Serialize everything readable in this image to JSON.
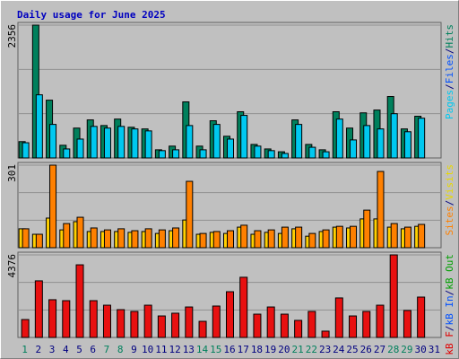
{
  "chart_data": [
    {
      "type": "bar",
      "title": "Daily usage for June 2025",
      "ylim": [
        0,
        2356
      ],
      "yticks": [
        2356
      ],
      "legend_separator": "/",
      "legend": [
        {
          "label": "Pages",
          "color": "#00c8f0"
        },
        {
          "label": "Files",
          "color": "#0050ff"
        },
        {
          "label": "Hits",
          "color": "#00805c"
        }
      ],
      "series": [
        {
          "color": "#00805c",
          "values": [
            290,
            2356,
            1025,
            225,
            530,
            675,
            575,
            690,
            545,
            515,
            145,
            210,
            995,
            210,
            660,
            385,
            820,
            240,
            160,
            110,
            675,
            240,
            145,
            820,
            530,
            800,
            850,
            1090,
            515,
            740,
            null
          ]
        },
        {
          "color": "#00c8f0",
          "values": [
            270,
            1120,
            595,
            160,
            335,
            560,
            530,
            560,
            515,
            480,
            130,
            145,
            575,
            145,
            595,
            335,
            755,
            210,
            130,
            80,
            595,
            190,
            110,
            690,
            320,
            575,
            515,
            785,
            465,
            705,
            null
          ]
        }
      ]
    },
    {
      "type": "bar",
      "ylim": [
        0,
        301
      ],
      "yticks": [
        301
      ],
      "legend_separator": "/",
      "legend": [
        {
          "label": "Sites",
          "color": "#ff8000"
        },
        {
          "label": "Visits",
          "color": "#e8d800"
        }
      ],
      "series": [
        {
          "color": "#ffd000",
          "values": [
            69,
            49,
            108,
            65,
            95,
            59,
            59,
            59,
            56,
            59,
            52,
            62,
            101,
            49,
            56,
            52,
            75,
            49,
            56,
            52,
            69,
            42,
            59,
            75,
            72,
            105,
            105,
            75,
            69,
            78,
            null
          ]
        },
        {
          "color": "#ff8000",
          "values": [
            69,
            49,
            301,
            88,
            111,
            72,
            65,
            69,
            62,
            69,
            65,
            72,
            242,
            52,
            59,
            62,
            82,
            62,
            65,
            75,
            75,
            52,
            65,
            78,
            78,
            137,
            278,
            88,
            75,
            85,
            null
          ]
        }
      ]
    },
    {
      "type": "bar",
      "ylim": [
        0,
        4376
      ],
      "yticks": [
        4376
      ],
      "legend_separator": "/",
      "legend": [
        {
          "label": "kB F",
          "color": "#e00000"
        },
        {
          "label": "kB In",
          "color": "#0050ff"
        },
        {
          "label": "kB Out",
          "color": "#00a000"
        }
      ],
      "categories": [
        "1",
        "2",
        "3",
        "4",
        "5",
        "6",
        "7",
        "8",
        "9",
        "10",
        "11",
        "12",
        "13",
        "14",
        "15",
        "16",
        "17",
        "18",
        "19",
        "20",
        "21",
        "22",
        "23",
        "24",
        "25",
        "26",
        "27",
        "28",
        "29",
        "30",
        "31"
      ],
      "label_colors": [
        "#00805c",
        "#000080",
        "#000080",
        "#000080",
        "#000080",
        "#000080",
        "#00805c",
        "#00805c",
        "#000080",
        "#000080",
        "#000080",
        "#000080",
        "#000080",
        "#00805c",
        "#00805c",
        "#000080",
        "#000080",
        "#000080",
        "#000080",
        "#000080",
        "#00805c",
        "#00805c",
        "#000080",
        "#000080",
        "#000080",
        "#000080",
        "#000080",
        "#00805c",
        "#00805c",
        "#000080",
        "#000080"
      ],
      "series": [
        {
          "color": "#e81010",
          "values": [
            950,
            3000,
            2000,
            1950,
            3850,
            1950,
            1710,
            1475,
            1380,
            1710,
            1140,
            1285,
            1615,
            855,
            1665,
            2425,
            3190,
            1235,
            1615,
            1235,
            905,
            1380,
            335,
            2095,
            1140,
            1380,
            1710,
            4376,
            1430,
            2140,
            null
          ]
        }
      ]
    }
  ]
}
